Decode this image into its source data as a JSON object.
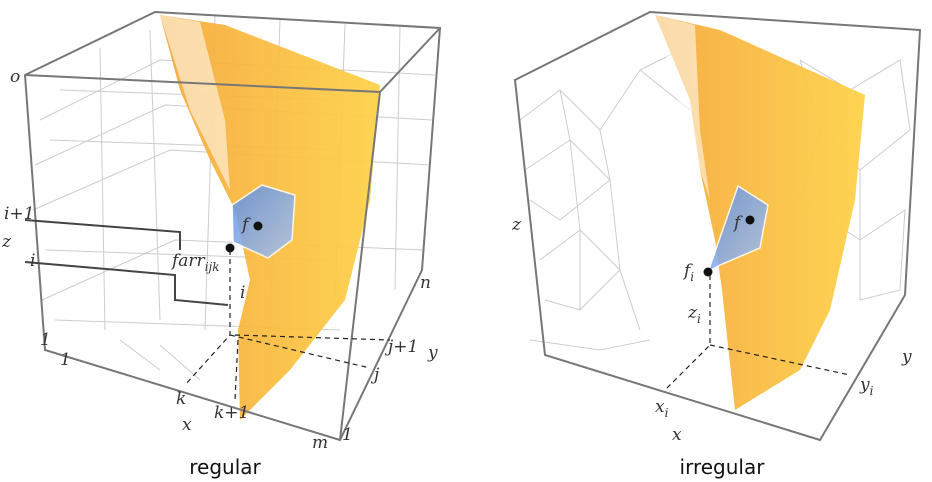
{
  "panels": [
    {
      "caption": "regular",
      "labels": {
        "o": "o",
        "i_plus_1": "i+1",
        "z": "z",
        "i": "i",
        "one_z": "1",
        "one_x": "1",
        "k": "k",
        "x": "x",
        "k_plus_1": "k+1",
        "m": "m",
        "one_y": "1",
        "j": "j",
        "j_plus_1": "j+1",
        "y": "y",
        "n": "n",
        "i_cell": "i",
        "farr": {
          "base": "farr",
          "sub": "ijk"
        },
        "f": "f"
      }
    },
    {
      "caption": "irregular",
      "labels": {
        "z": "z",
        "f": "f",
        "f_i": {
          "base": "f",
          "sub": "i"
        },
        "z_i": {
          "base": "z",
          "sub": "i"
        },
        "x_i": {
          "base": "x",
          "sub": "i"
        },
        "x": "x",
        "y_i": {
          "base": "y",
          "sub": "i"
        },
        "y": "y"
      }
    }
  ]
}
